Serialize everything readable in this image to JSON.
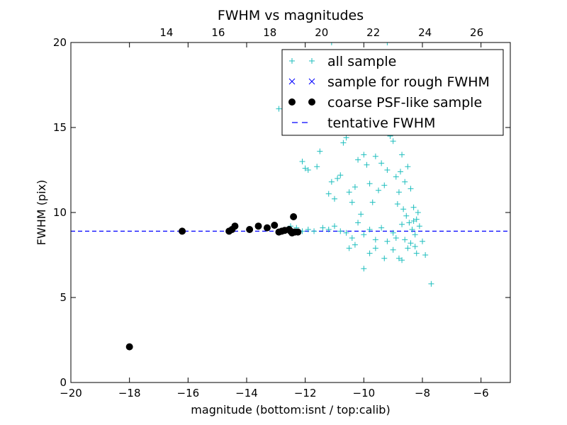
{
  "chart_data": {
    "type": "scatter",
    "title": "FWHM vs magnitudes",
    "xlabel": "magnitude (bottom:isnt / top:calib)",
    "ylabel": "FWHM (pix)",
    "xlim": [
      -20,
      -5
    ],
    "ylim": [
      0,
      20
    ],
    "x2lim": [
      10.3,
      27.3
    ],
    "x_ticks": [
      -20,
      -18,
      -16,
      -14,
      -12,
      -10,
      -8,
      -6
    ],
    "x_tick_labels": [
      "−20",
      "−18",
      "−16",
      "−14",
      "−12",
      "−10",
      "−8",
      "−6"
    ],
    "y_ticks": [
      0,
      5,
      10,
      15,
      20
    ],
    "y_tick_labels": [
      "0",
      "5",
      "10",
      "15",
      "20"
    ],
    "x2_ticks": [
      14,
      16,
      18,
      20,
      22,
      24,
      26
    ],
    "x2_tick_labels": [
      "14",
      "16",
      "18",
      "20",
      "22",
      "24",
      "26"
    ],
    "grid": false,
    "legend_position": "top-right",
    "series": [
      {
        "name": "all sample",
        "marker": "+",
        "color": "#1ebebe",
        "points": [
          [
            -12.1,
            13.0
          ],
          [
            -12.0,
            12.6
          ],
          [
            -11.9,
            12.5
          ],
          [
            -11.6,
            12.7
          ],
          [
            -11.5,
            13.6
          ],
          [
            -11.2,
            11.1
          ],
          [
            -11.1,
            11.8
          ],
          [
            -11.0,
            10.8
          ],
          [
            -10.9,
            12.0
          ],
          [
            -10.8,
            12.2
          ],
          [
            -10.7,
            14.1
          ],
          [
            -10.6,
            14.4
          ],
          [
            -10.5,
            11.2
          ],
          [
            -10.4,
            10.6
          ],
          [
            -10.3,
            11.5
          ],
          [
            -10.2,
            13.1
          ],
          [
            -10.1,
            9.9
          ],
          [
            -10.0,
            13.4
          ],
          [
            -9.9,
            12.8
          ],
          [
            -9.8,
            11.7
          ],
          [
            -9.7,
            10.6
          ],
          [
            -9.6,
            13.3
          ],
          [
            -9.5,
            11.3
          ],
          [
            -9.4,
            12.9
          ],
          [
            -9.3,
            11.6
          ],
          [
            -9.2,
            12.5
          ],
          [
            -9.1,
            14.5
          ],
          [
            -9.0,
            14.2
          ],
          [
            -8.9,
            12.1
          ],
          [
            -8.85,
            10.5
          ],
          [
            -8.8,
            11.2
          ],
          [
            -8.75,
            12.4
          ],
          [
            -8.7,
            13.4
          ],
          [
            -8.65,
            10.2
          ],
          [
            -8.6,
            11.8
          ],
          [
            -8.55,
            9.8
          ],
          [
            -8.5,
            12.7
          ],
          [
            -8.45,
            9.4
          ],
          [
            -8.4,
            11.4
          ],
          [
            -8.35,
            9.0
          ],
          [
            -8.3,
            10.3
          ],
          [
            -8.25,
            8.7
          ],
          [
            -8.2,
            9.6
          ],
          [
            -8.15,
            10.0
          ],
          [
            -8.1,
            9.2
          ],
          [
            -8.0,
            8.3
          ],
          [
            -7.9,
            7.5
          ],
          [
            -7.7,
            5.8
          ],
          [
            -12.5,
            9.2
          ],
          [
            -12.3,
            9.1
          ],
          [
            -12.1,
            8.9
          ],
          [
            -11.9,
            9.0
          ],
          [
            -11.7,
            8.9
          ],
          [
            -11.4,
            9.1
          ],
          [
            -11.2,
            9.0
          ],
          [
            -11.0,
            9.2
          ],
          [
            -10.8,
            8.9
          ],
          [
            -10.6,
            8.8
          ],
          [
            -10.4,
            8.5
          ],
          [
            -10.2,
            9.4
          ],
          [
            -10.0,
            8.7
          ],
          [
            -9.8,
            9.0
          ],
          [
            -9.6,
            8.4
          ],
          [
            -9.4,
            9.1
          ],
          [
            -9.2,
            8.3
          ],
          [
            -9.0,
            8.8
          ],
          [
            -8.9,
            8.5
          ],
          [
            -8.8,
            7.3
          ],
          [
            -8.7,
            9.3
          ],
          [
            -8.6,
            8.4
          ],
          [
            -8.5,
            7.9
          ],
          [
            -8.4,
            8.2
          ],
          [
            -8.3,
            9.5
          ],
          [
            -8.25,
            8.0
          ],
          [
            -8.2,
            7.6
          ],
          [
            -10.0,
            6.7
          ],
          [
            -9.8,
            7.6
          ],
          [
            -9.6,
            7.9
          ],
          [
            -9.3,
            7.3
          ],
          [
            -9.0,
            7.8
          ],
          [
            -8.7,
            7.2
          ],
          [
            -10.5,
            7.9
          ],
          [
            -10.3,
            8.1
          ],
          [
            -12.9,
            16.1
          ],
          [
            -11.1,
            20.0
          ],
          [
            -9.2,
            20.0
          ],
          [
            -9.5,
            18.4
          ],
          [
            -9.7,
            17.0
          ],
          [
            -9.4,
            16.5
          ],
          [
            -9.3,
            15.4
          ],
          [
            -9.6,
            15.0
          ],
          [
            -8.9,
            15.9
          ],
          [
            -8.8,
            15.0
          ]
        ]
      },
      {
        "name": "sample for rough FWHM",
        "marker": "x",
        "color": "#0000ff",
        "points": []
      },
      {
        "name": "coarse PSF-like sample",
        "marker": "o",
        "color": "#000000",
        "points": [
          [
            -18.0,
            2.1
          ],
          [
            -16.2,
            8.9
          ],
          [
            -14.6,
            8.9
          ],
          [
            -14.5,
            9.0
          ],
          [
            -14.4,
            9.2
          ],
          [
            -13.9,
            9.0
          ],
          [
            -13.6,
            9.2
          ],
          [
            -13.3,
            9.1
          ],
          [
            -13.05,
            9.25
          ],
          [
            -12.9,
            8.85
          ],
          [
            -12.8,
            8.9
          ],
          [
            -12.7,
            8.95
          ],
          [
            -12.55,
            9.0
          ],
          [
            -12.5,
            8.9
          ],
          [
            -12.45,
            8.8
          ],
          [
            -12.4,
            9.75
          ],
          [
            -12.35,
            8.85
          ],
          [
            -12.25,
            8.85
          ]
        ]
      }
    ],
    "reference_lines": [
      {
        "name": "tentative FWHM",
        "orientation": "horizontal",
        "y": 8.9,
        "style": "dashed",
        "color": "#0000ff"
      }
    ]
  }
}
